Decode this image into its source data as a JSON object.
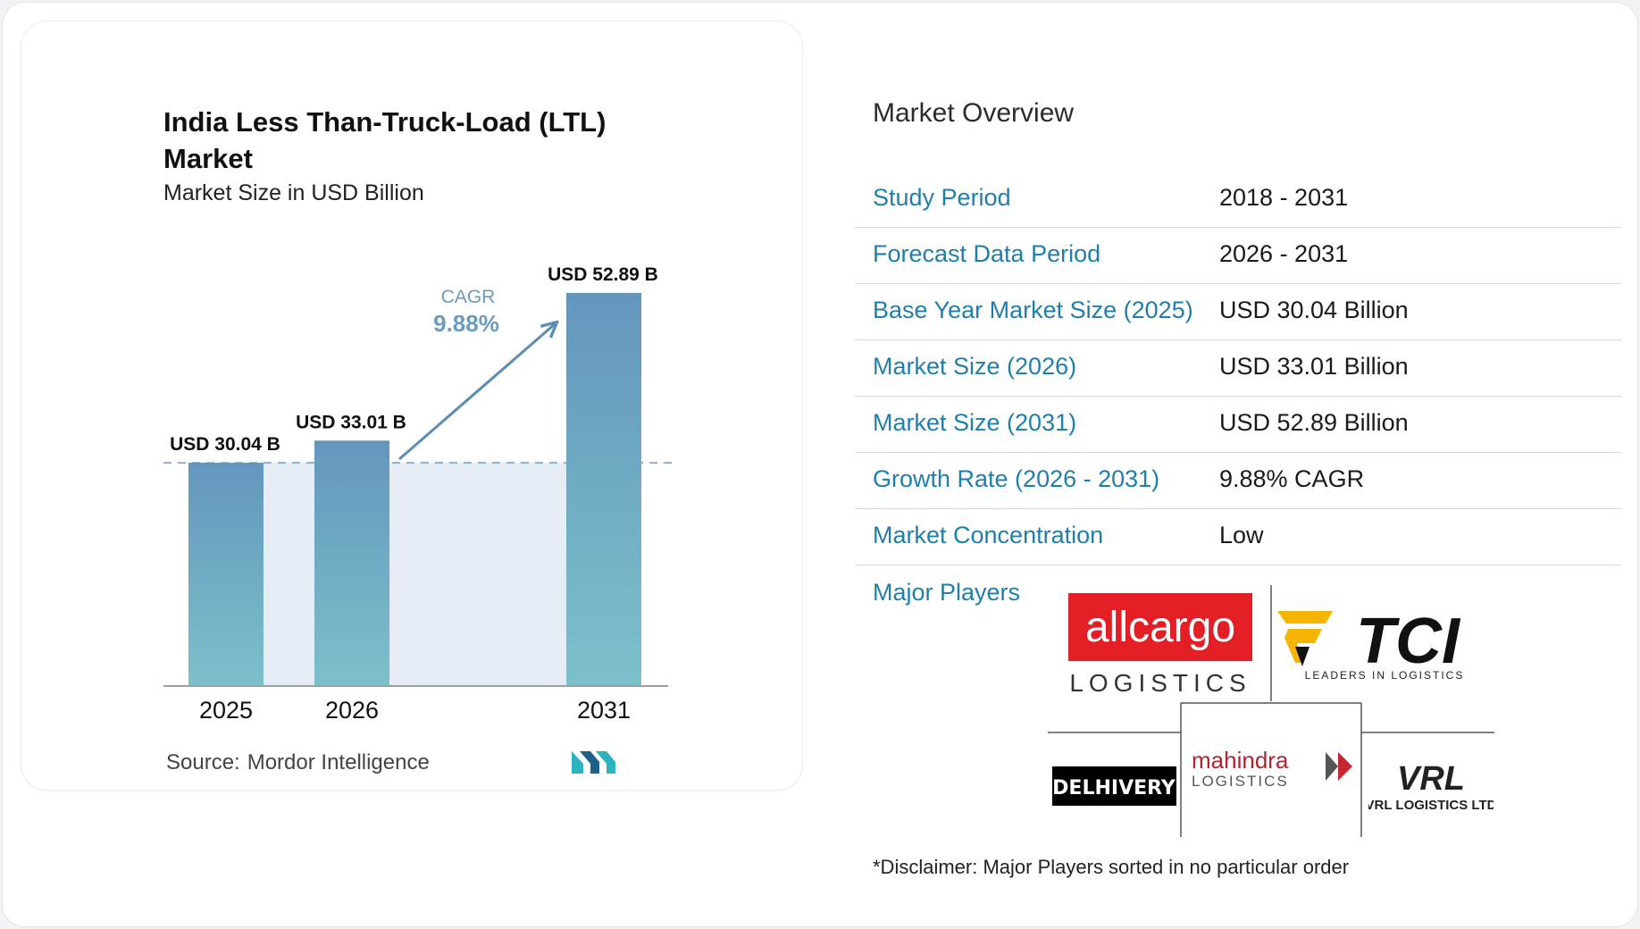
{
  "chart_data": {
    "type": "bar",
    "title": "India Less Than-Truck-Load (LTL) Market",
    "subtitle": "Market Size in USD Billion",
    "categories": [
      "2025",
      "2026",
      "2031"
    ],
    "values": [
      30.04,
      33.01,
      52.89
    ],
    "value_labels": [
      "USD 30.04 B",
      "USD 33.01 B",
      "USD 52.89 B"
    ],
    "cagr_label": "CAGR",
    "cagr_value": "9.88%",
    "baseline_dashed": true,
    "ylim": [
      0,
      56
    ]
  },
  "source": {
    "label": "Source:",
    "name": "Mordor Intelligence"
  },
  "overview": {
    "title": "Market Overview",
    "rows": [
      {
        "label": "Study Period",
        "value": "2018 - 2031"
      },
      {
        "label": "Forecast Data Period",
        "value": "2026 - 2031"
      },
      {
        "label": "Base Year Market Size (2025)",
        "value": "USD 30.04 Billion"
      },
      {
        "label": "Market Size (2026)",
        "value": "USD 33.01 Billion"
      },
      {
        "label": "Market Size (2031)",
        "value": "USD 52.89 Billion"
      },
      {
        "label": "Growth Rate (2026 - 2031)",
        "value": "9.88% CAGR"
      },
      {
        "label": "Market Concentration",
        "value": "Low"
      }
    ]
  },
  "players": {
    "label": "Major Players",
    "logos": [
      {
        "name": "allcargo",
        "text": "allcargo",
        "subtext": "LOGISTICS"
      },
      {
        "name": "tci",
        "text": "TCI",
        "subtext": "LEADERS IN LOGISTICS"
      },
      {
        "name": "delhivery",
        "text": "DELHIVERY"
      },
      {
        "name": "mahindra",
        "text": "mahindra",
        "subtext": "LOGISTICS"
      },
      {
        "name": "vrl",
        "text": "VRL",
        "subtext": "VRL LOGISTICS LTD"
      }
    ]
  },
  "disclaimer": "*Disclaimer: Major Players sorted in no particular order",
  "colors": {
    "bar_top": "#6496bd",
    "bar_bottom": "#7cc0c9",
    "accent_blue": "#1f7fab",
    "cagr": "#6a9bbd",
    "band": "#e5ecf3",
    "allcargo_red": "#e31e25",
    "tci_yellow": "#f5b400",
    "mahindra_red": "#b3232f"
  }
}
